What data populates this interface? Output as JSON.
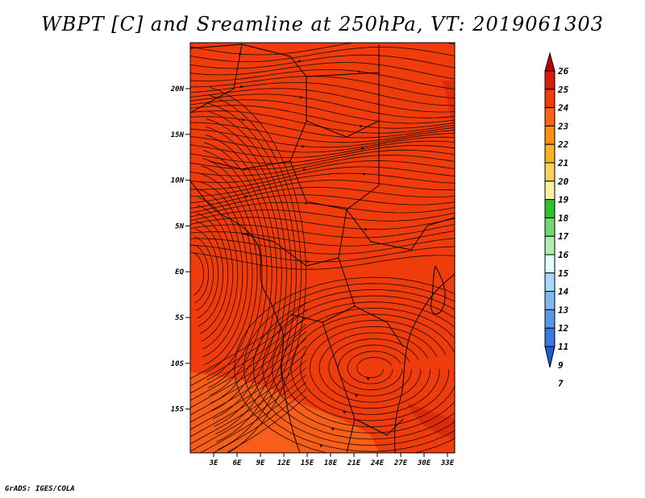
{
  "title": "WBPT [C] and Sreamline at 250hPa, VT: 2019061303",
  "credit": "GrADS: IGES/COLA",
  "map": {
    "lat_labels": [
      "20N",
      "15N",
      "10N",
      "5N",
      "EQ",
      "5S",
      "10S",
      "15S"
    ],
    "lon_labels": [
      "3E",
      "6E",
      "9E",
      "12E",
      "15E",
      "18E",
      "21E",
      "24E",
      "27E",
      "30E",
      "33E"
    ],
    "field_color": "#f03c0c",
    "warm_patch_color": "#d8240a",
    "cool_patch_color": "#f8641c"
  },
  "colorbar": {
    "labels": [
      "26",
      "25",
      "24",
      "23",
      "22",
      "21",
      "20",
      "19",
      "18",
      "17",
      "16",
      "15",
      "14",
      "13",
      "12",
      "11",
      "9",
      "7"
    ],
    "colors": [
      "#c00000",
      "#d81c0c",
      "#f03c0c",
      "#f8641c",
      "#f89010",
      "#f8b420",
      "#f8d060",
      "#f8f0a0",
      "#30c030",
      "#70d870",
      "#b0ecb0",
      "#e0fcfc",
      "#a8d8f8",
      "#80b8f0",
      "#5898e8",
      "#3c78e0",
      "#2058d8"
    ]
  }
}
